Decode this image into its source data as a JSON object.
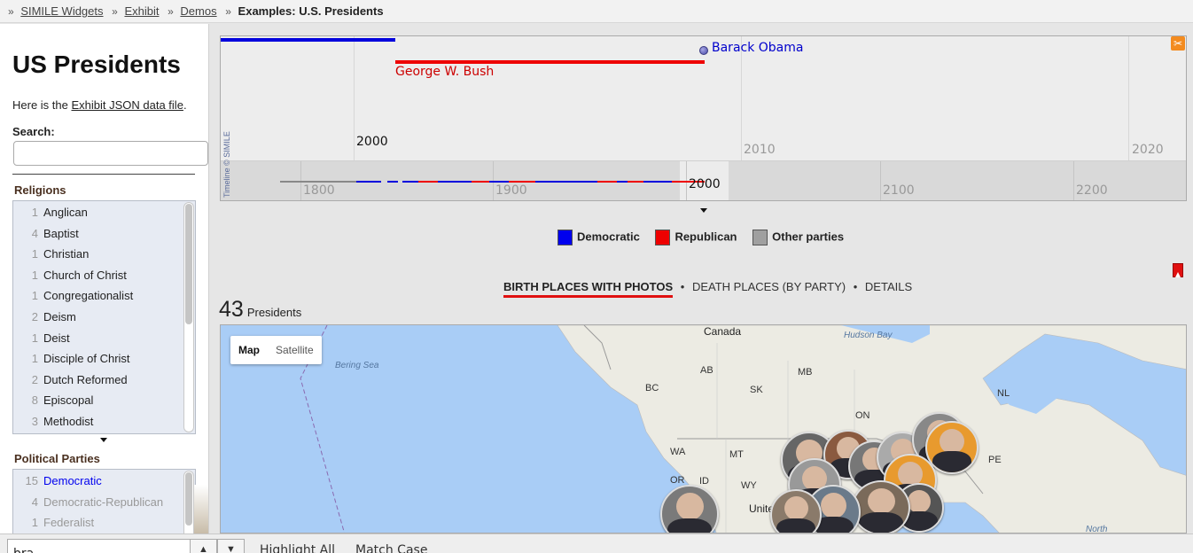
{
  "breadcrumb": {
    "items": [
      "SIMILE Widgets",
      "Exhibit",
      "Demos"
    ],
    "current": "Examples: U.S. Presidents"
  },
  "sidebar": {
    "title": "US Presidents",
    "intro_prefix": "Here is the ",
    "intro_link": "Exhibit JSON data file",
    "intro_suffix": ".",
    "search_label": "Search:",
    "search_value": "",
    "religions": {
      "title": "Religions",
      "items": [
        {
          "count": "1",
          "label": "Anglican"
        },
        {
          "count": "4",
          "label": "Baptist"
        },
        {
          "count": "1",
          "label": "Christian"
        },
        {
          "count": "1",
          "label": "Church of Christ"
        },
        {
          "count": "1",
          "label": "Congregationalist"
        },
        {
          "count": "2",
          "label": "Deism"
        },
        {
          "count": "1",
          "label": "Deist"
        },
        {
          "count": "1",
          "label": "Disciple of Christ"
        },
        {
          "count": "2",
          "label": "Dutch Reformed"
        },
        {
          "count": "8",
          "label": "Episcopal"
        },
        {
          "count": "3",
          "label": "Methodist"
        }
      ]
    },
    "parties": {
      "title": "Political Parties",
      "items": [
        {
          "count": "15",
          "label": "Democratic"
        },
        {
          "count": "4",
          "label": "Democratic-Republican"
        },
        {
          "count": "1",
          "label": "Federalist"
        }
      ]
    }
  },
  "timeline": {
    "upper_labels": [
      "2000",
      "2010",
      "2020"
    ],
    "lower_labels": [
      "1800",
      "1900",
      "2000",
      "2100",
      "2200"
    ],
    "events": [
      {
        "name": "Barack Obama",
        "color": "#0000dd"
      },
      {
        "name": "George W. Bush",
        "color": "#dd0000"
      }
    ],
    "copyright": "Timeline © SIMILE"
  },
  "legend": [
    {
      "label": "Democratic",
      "color": "#0000ee"
    },
    {
      "label": "Republican",
      "color": "#ee0000"
    },
    {
      "label": "Other parties",
      "color": "#a0a0a0"
    }
  ],
  "views": {
    "active": "BIRTH PLACES WITH PHOTOS",
    "others": [
      "DEATH PLACES (BY PARTY)",
      "DETAILS"
    ],
    "separator": "•"
  },
  "count": {
    "number": "43",
    "label": "Presidents"
  },
  "map": {
    "type_selected": "Map",
    "type_other": "Satellite",
    "labels": {
      "canada": "Canada",
      "hudson": "Hudson Bay",
      "bering": "Bering Sea",
      "ab": "AB",
      "mb": "MB",
      "bc": "BC",
      "sk": "SK",
      "nl": "NL",
      "on": "ON",
      "wa": "WA",
      "mt": "MT",
      "id": "ID",
      "wy": "WY",
      "or": "OR",
      "pe": "PE",
      "united": "United",
      "north": "North"
    }
  },
  "findbar": {
    "value": "bra",
    "prev_icon": "chevron-up-icon",
    "next_icon": "chevron-down-icon",
    "highlight_all": "Highlight All",
    "match_case": "Match Case"
  }
}
